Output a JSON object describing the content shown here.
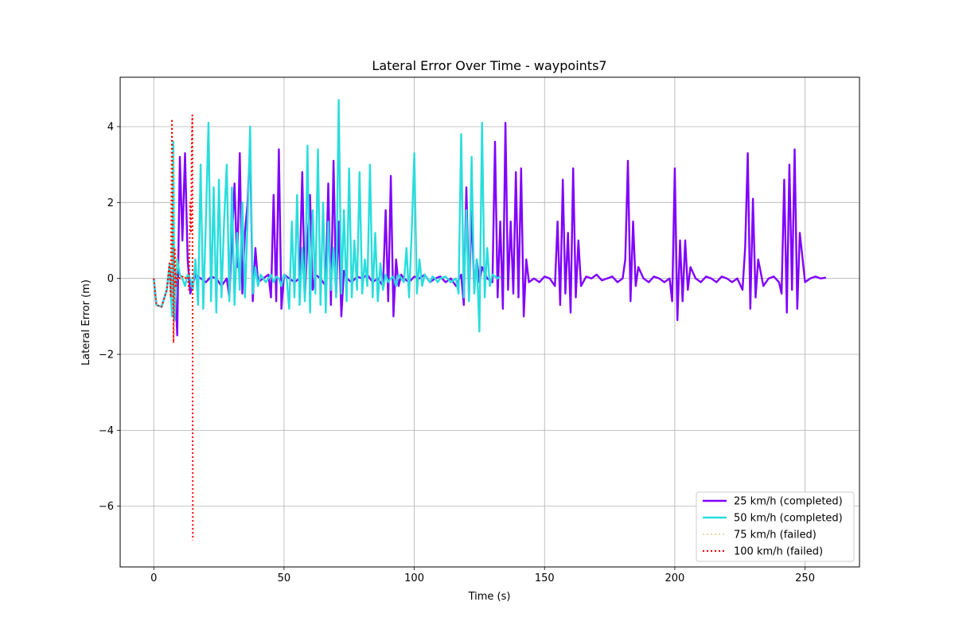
{
  "chart_data": {
    "type": "line",
    "title": "Lateral Error Over Time - waypoints7",
    "xlabel": "Time (s)",
    "ylabel": "Lateral Error (m)",
    "xlim": [
      -12.9,
      270.9
    ],
    "ylim": [
      -7.6,
      5.3
    ],
    "xticks": [
      0,
      50,
      100,
      150,
      200,
      250
    ],
    "yticks": [
      -6,
      -4,
      -2,
      0,
      2,
      4
    ],
    "xtick_labels": [
      "0",
      "50",
      "100",
      "150",
      "200",
      "250"
    ],
    "ytick_labels": [
      "−6",
      "−4",
      "−2",
      "0",
      "2",
      "4"
    ],
    "grid": true,
    "legend_position": "bottom-right",
    "series": [
      {
        "name": "25 km/h (completed)",
        "color": "#8000ff",
        "style": "solid",
        "x": [
          0,
          1,
          3,
          5,
          6,
          7,
          8,
          9,
          10,
          11,
          12,
          13,
          14,
          16,
          18,
          20,
          22,
          24,
          26,
          28,
          29,
          30,
          31,
          32,
          33,
          34,
          35,
          36,
          37,
          38,
          39,
          40,
          42,
          44,
          45,
          46,
          47,
          48,
          49,
          50,
          52,
          54,
          56,
          57,
          58,
          59,
          60,
          61,
          62,
          64,
          66,
          67,
          68,
          69,
          70,
          71,
          72,
          73,
          74,
          76,
          78,
          80,
          82,
          84,
          86,
          88,
          89,
          90,
          91,
          92,
          93,
          94,
          95,
          96,
          98,
          100,
          102,
          104,
          106,
          108,
          110,
          112,
          114,
          116,
          118,
          119,
          120,
          121,
          122,
          123,
          124,
          125,
          126,
          128,
          130,
          131,
          132,
          133,
          134,
          135,
          136,
          137,
          138,
          139,
          140,
          141,
          142,
          143,
          144,
          146,
          148,
          150,
          152,
          154,
          155,
          156,
          157,
          158,
          159,
          160,
          161,
          162,
          163,
          164,
          166,
          168,
          170,
          172,
          174,
          176,
          178,
          180,
          181,
          182,
          183,
          184,
          185,
          186,
          188,
          190,
          192,
          194,
          196,
          198,
          199,
          200,
          201,
          202,
          203,
          204,
          205,
          206,
          208,
          210,
          212,
          214,
          216,
          218,
          220,
          222,
          224,
          226,
          227,
          228,
          229,
          230,
          231,
          232,
          234,
          236,
          238,
          240,
          241,
          242,
          243,
          244,
          245,
          246,
          247,
          248,
          250,
          252,
          254,
          256,
          258
        ],
        "y": [
          0,
          -0.7,
          -0.75,
          -0.3,
          0.3,
          -0.4,
          0.2,
          -1.5,
          3.2,
          1.0,
          3.3,
          0.5,
          -0.4,
          0.1,
          0.0,
          -0.1,
          0.05,
          0.0,
          -0.2,
          0.0,
          -0.5,
          1.0,
          2.5,
          0.3,
          3.3,
          -0.4,
          1.2,
          2.0,
          3.5,
          -0.6,
          0.8,
          -0.1,
          0.0,
          0.1,
          -0.5,
          2.2,
          -0.6,
          3.4,
          -0.8,
          0.1,
          0.0,
          -0.1,
          0.0,
          2.8,
          -0.5,
          1.0,
          2.2,
          -0.3,
          0.1,
          0.0,
          -0.2,
          2.5,
          -0.7,
          3.1,
          -0.4,
          1.5,
          -1.0,
          0.2,
          0.0,
          -0.1,
          0.05,
          0.0,
          0.1,
          -0.1,
          0.0,
          -0.2,
          1.8,
          -0.6,
          2.7,
          -1.0,
          0.5,
          -0.2,
          0.1,
          0.0,
          -0.1,
          0.05,
          0.0,
          0.1,
          -0.1,
          0.0,
          0.05,
          -0.1,
          0.0,
          -0.2,
          0.1,
          -0.7,
          2.4,
          -0.5,
          1.8,
          -0.3,
          0.5,
          -0.1,
          0.3,
          0.0,
          -0.1,
          3.6,
          -0.5,
          1.5,
          -0.8,
          4.1,
          -0.3,
          1.5,
          -0.4,
          2.8,
          -0.5,
          2.9,
          -1.0,
          0.5,
          -0.1,
          0.0,
          -0.1,
          0.05,
          0.0,
          -0.2,
          1.5,
          -0.7,
          2.6,
          -0.4,
          1.2,
          -0.9,
          2.9,
          -0.5,
          1.0,
          -0.2,
          0.05,
          0.0,
          0.1,
          -0.05,
          0.0,
          0.05,
          -0.1,
          0.0,
          0.5,
          3.1,
          -0.6,
          1.5,
          -0.2,
          0.3,
          0.0,
          -0.1,
          0.05,
          0.0,
          -0.1,
          0.0,
          -0.6,
          2.9,
          -1.1,
          1.0,
          -0.6,
          1.0,
          -0.3,
          0.3,
          0.0,
          -0.1,
          0.05,
          0.0,
          -0.1,
          0.05,
          0.0,
          -0.1,
          0.0,
          -0.3,
          0.8,
          3.3,
          -0.8,
          2.1,
          -0.5,
          0.5,
          -0.2,
          0.0,
          0.05,
          -0.1,
          -0.4,
          2.6,
          -0.9,
          3.0,
          -0.3,
          3.4,
          -0.8,
          1.2,
          -0.1,
          0.0,
          0.05,
          0.0,
          0.02
        ]
      },
      {
        "name": "50 km/h (completed)",
        "color": "#2adddd",
        "style": "solid",
        "x": [
          0,
          1,
          3,
          5,
          6,
          7,
          7.5,
          8,
          9,
          10,
          11,
          12,
          13,
          14,
          15,
          16,
          17,
          18,
          19,
          20,
          21,
          22,
          23,
          24,
          25,
          26,
          27,
          28,
          29,
          30,
          31,
          32,
          33,
          34,
          35,
          36,
          37,
          38,
          39,
          40,
          41,
          42,
          43,
          44,
          45,
          46,
          47,
          48,
          49,
          50,
          51,
          52,
          53,
          54,
          55,
          56,
          57,
          58,
          59,
          60,
          61,
          62,
          63,
          64,
          65,
          66,
          67,
          68,
          69,
          70,
          71,
          72,
          73,
          74,
          75,
          76,
          77,
          78,
          79,
          80,
          81,
          82,
          83,
          84,
          85,
          86,
          87,
          88,
          89,
          90,
          91,
          92,
          93,
          94,
          95,
          96,
          97,
          98,
          99,
          100,
          101,
          102,
          103,
          104,
          105,
          106,
          107,
          108,
          109,
          110,
          112,
          114,
          116,
          117,
          118,
          119,
          120,
          121,
          122,
          123,
          124,
          125,
          126,
          127,
          128,
          129,
          130,
          132,
          133
        ],
        "y": [
          0,
          -0.7,
          -0.75,
          -0.3,
          0.35,
          -1.0,
          3.6,
          -1.1,
          0.5,
          0.1,
          0.0,
          -0.2,
          0.1,
          0.0,
          -0.3,
          0.5,
          -0.7,
          3.0,
          -0.8,
          1.5,
          4.1,
          -0.6,
          2.4,
          -0.9,
          2.6,
          -0.5,
          1.5,
          3.0,
          -0.6,
          2.4,
          -0.7,
          1.2,
          -0.3,
          2.0,
          -0.5,
          1.5,
          4.0,
          -0.4,
          0.3,
          -0.2,
          0.1,
          0.0,
          -0.1,
          0.0,
          0.1,
          -0.1,
          0.05,
          0.0,
          -0.2,
          0.1,
          0.0,
          -0.8,
          1.5,
          -0.5,
          2.2,
          -0.7,
          0.8,
          -0.6,
          3.5,
          -0.9,
          1.8,
          -0.4,
          3.4,
          -0.7,
          2.0,
          -0.9,
          1.5,
          -0.3,
          0.8,
          -0.5,
          4.7,
          -0.4,
          1.8,
          -0.6,
          2.9,
          -0.5,
          1.0,
          -0.3,
          2.8,
          -0.4,
          0.5,
          -0.2,
          3.0,
          -0.5,
          1.2,
          -0.6,
          0.4,
          -0.3,
          0.1,
          -0.1,
          0.0,
          0.05,
          -0.2,
          0.1,
          0.0,
          -0.1,
          0.8,
          -0.5,
          1.2,
          3.3,
          -0.4,
          0.5,
          -0.2,
          0.1,
          0.0,
          -0.1,
          0.05,
          0.0,
          -0.1,
          0.0,
          0.05,
          -0.1,
          0.0,
          -0.4,
          3.8,
          -0.5,
          1.8,
          -0.6,
          3.2,
          -0.4,
          0.5,
          -1.4,
          4.1,
          -0.5,
          0.8,
          -0.2,
          0.1,
          0.0,
          0.05
        ]
      },
      {
        "name": "75 km/h (failed)",
        "color": "#d4c878",
        "style": "dotted",
        "x": [
          0,
          1,
          3,
          5,
          6,
          6.5,
          7,
          7.5,
          8,
          8.5,
          9,
          9.5,
          10,
          11,
          12
        ],
        "y": [
          0,
          -0.7,
          -0.75,
          -0.3,
          0.3,
          -0.5,
          2.0,
          3.3,
          -0.9,
          0.8,
          0.1,
          0.0,
          -0.05,
          0.0,
          0.05
        ]
      },
      {
        "name": "100 km/h (failed)",
        "color": "#ff0000",
        "style": "dotted",
        "x": [
          0,
          1,
          3,
          5,
          6,
          6.5,
          7,
          7.3,
          7.6,
          8,
          8.5,
          9,
          10,
          11,
          12,
          13,
          13.5,
          14,
          14.3,
          14.6,
          14.8,
          15
        ],
        "y": [
          0,
          -0.7,
          -0.75,
          -0.3,
          0.4,
          -0.5,
          4.2,
          1.5,
          -1.7,
          0.8,
          -0.2,
          0.1,
          0.0,
          0.05,
          0.0,
          0.05,
          -0.3,
          2.0,
          1.2,
          3.5,
          4.3,
          -6.9
        ]
      }
    ]
  }
}
